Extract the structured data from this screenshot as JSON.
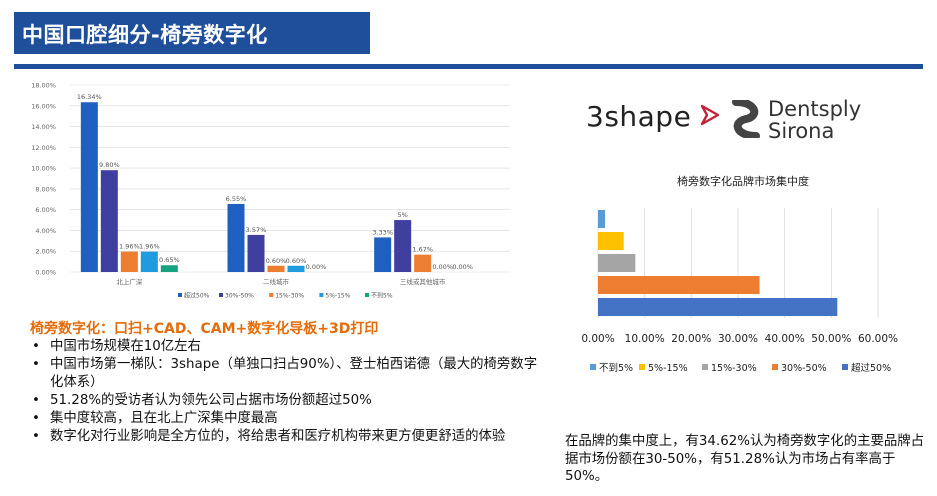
{
  "title": "中国口腔细分-椅旁数字化",
  "subhead": "椅旁数字化：口扫+CAD、CAM+数字化导板+3D打印",
  "bullets": [
    "中国市场规模在10亿左右",
    "中国市场第一梯队：3shape（单独口扫占90%）、登士柏西诺德（最大的椅旁数字化体系）",
    "51.28%的受访者认为领先公司占据市场份额超过50%",
    "集中度较高，且在北上广深集中度最高",
    "数字化对行业影响是全方位的，将给患者和医疗机构带来更方便更舒适的体验"
  ],
  "right_text": "在品牌的集中度上，有34.62%认为椅旁数字化的主要品牌占据市场份额在30-50%，有51.28%认为市场占有率高于50%。",
  "logos": {
    "threeshape": "3shape",
    "dentsply_line1": "Dentsply",
    "dentsply_line2": "Sirona"
  },
  "colors": {
    "blue": "#4472c4",
    "navy": "#3f3f9f",
    "orange": "#ed7d31",
    "gray": "#a5a5a5",
    "yellow": "#ffc000",
    "sky": "#5b9bd5",
    "teal": "#00b08a",
    "brand": "#1f4e9a"
  },
  "chart_data": [
    {
      "type": "bar",
      "categories": [
        "北上广深",
        "二线城市",
        "三线或其他城市"
      ],
      "series": [
        {
          "name": "超过50%",
          "color": "#1e5fbf",
          "values": [
            16.34,
            6.55,
            3.33
          ],
          "labels": [
            "16.34%",
            "6.55%",
            "3.33%"
          ]
        },
        {
          "name": "30%-50%",
          "color": "#3f3f9f",
          "values": [
            9.8,
            3.57,
            5.0
          ],
          "labels": [
            "9.80%",
            "3.57%",
            "5%"
          ]
        },
        {
          "name": "15%-30%",
          "color": "#ed7d31",
          "values": [
            1.96,
            0.6,
            1.67
          ],
          "labels": [
            "1.96%",
            "0.60%",
            "1.67%"
          ]
        },
        {
          "name": "5%-15%",
          "color": "#1f9be0",
          "values": [
            1.96,
            0.6,
            0
          ],
          "labels": [
            "1.96%",
            "0.60%",
            "0.00%"
          ]
        },
        {
          "name": "不到5%",
          "color": "#14a37f",
          "values": [
            0.65,
            0,
            0
          ],
          "labels": [
            "0.65%",
            "0.00%",
            "0.00%"
          ]
        }
      ],
      "yticks": [
        "0.00%",
        "2.00%",
        "4.00%",
        "6.00%",
        "8.00%",
        "10.00%",
        "12.00%",
        "14.00%",
        "16.00%",
        "18.00%"
      ],
      "ylim": [
        0,
        18
      ],
      "legend": "bottom"
    },
    {
      "type": "bar",
      "orientation": "horizontal",
      "title": "椅旁数字化品牌市场集中度",
      "categories": [
        "不到5%",
        "5%-15%",
        "15%-30%",
        "30%-50%",
        "超过50%"
      ],
      "colors": [
        "#5b9bd5",
        "#ffc000",
        "#a5a5a5",
        "#ed7d31",
        "#4472c4"
      ],
      "values": [
        1.5,
        5.5,
        8.0,
        34.62,
        51.28
      ],
      "xticks": [
        "0.00%",
        "10.00%",
        "20.00%",
        "30.00%",
        "40.00%",
        "50.00%",
        "60.00%"
      ],
      "xlim": [
        0,
        60
      ],
      "legend": "bottom"
    }
  ]
}
